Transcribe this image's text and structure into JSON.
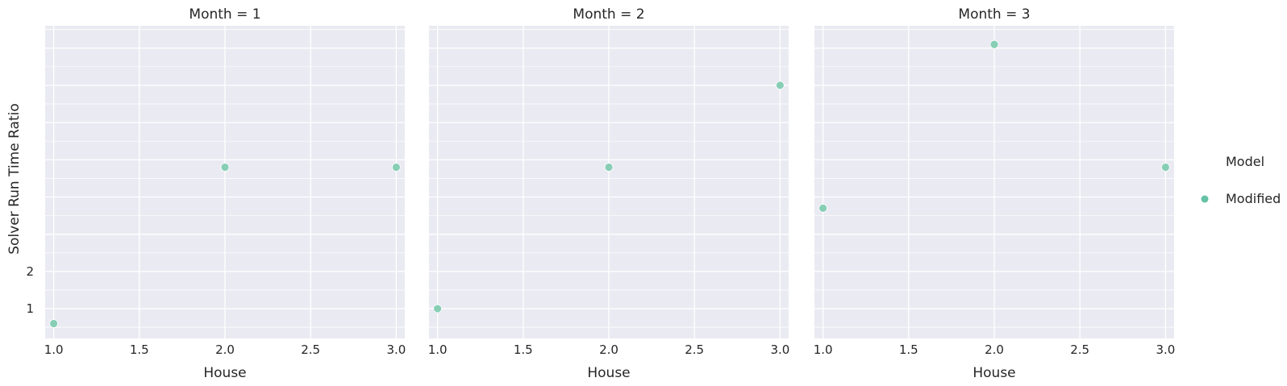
{
  "chart_data": {
    "type": "scatter",
    "colors": {
      "panel_background": "#EAEAF2",
      "grid": "#FFFFFF",
      "marker": "#87CEB5",
      "legend_marker": "#66C2A5",
      "text": "#262626"
    },
    "grid": true,
    "ylabel": "Solver Run Time Ratio",
    "xlabel": "House",
    "x_ticks": [
      "1.0",
      "1.5",
      "2.0",
      "2.5",
      "3.0"
    ],
    "y_ticks": [
      "1",
      "2"
    ],
    "xlim": [
      0.95,
      3.05
    ],
    "ylim": [
      0.2,
      8.6
    ],
    "legend": {
      "title": "Model",
      "entries": [
        "Modified"
      ],
      "placement": "right"
    },
    "panels": [
      {
        "title": "Month = 1",
        "series": [
          {
            "name": "Modified",
            "x": [
              1.0,
              2.0,
              3.0
            ],
            "y": [
              0.6,
              4.8,
              4.8
            ]
          }
        ]
      },
      {
        "title": "Month = 2",
        "series": [
          {
            "name": "Modified",
            "x": [
              1.0,
              2.0,
              3.0
            ],
            "y": [
              1.0,
              4.8,
              7.0
            ]
          }
        ]
      },
      {
        "title": "Month = 3",
        "series": [
          {
            "name": "Modified",
            "x": [
              1.0,
              2.0,
              3.0
            ],
            "y": [
              3.7,
              8.1,
              4.8
            ]
          }
        ]
      }
    ]
  }
}
